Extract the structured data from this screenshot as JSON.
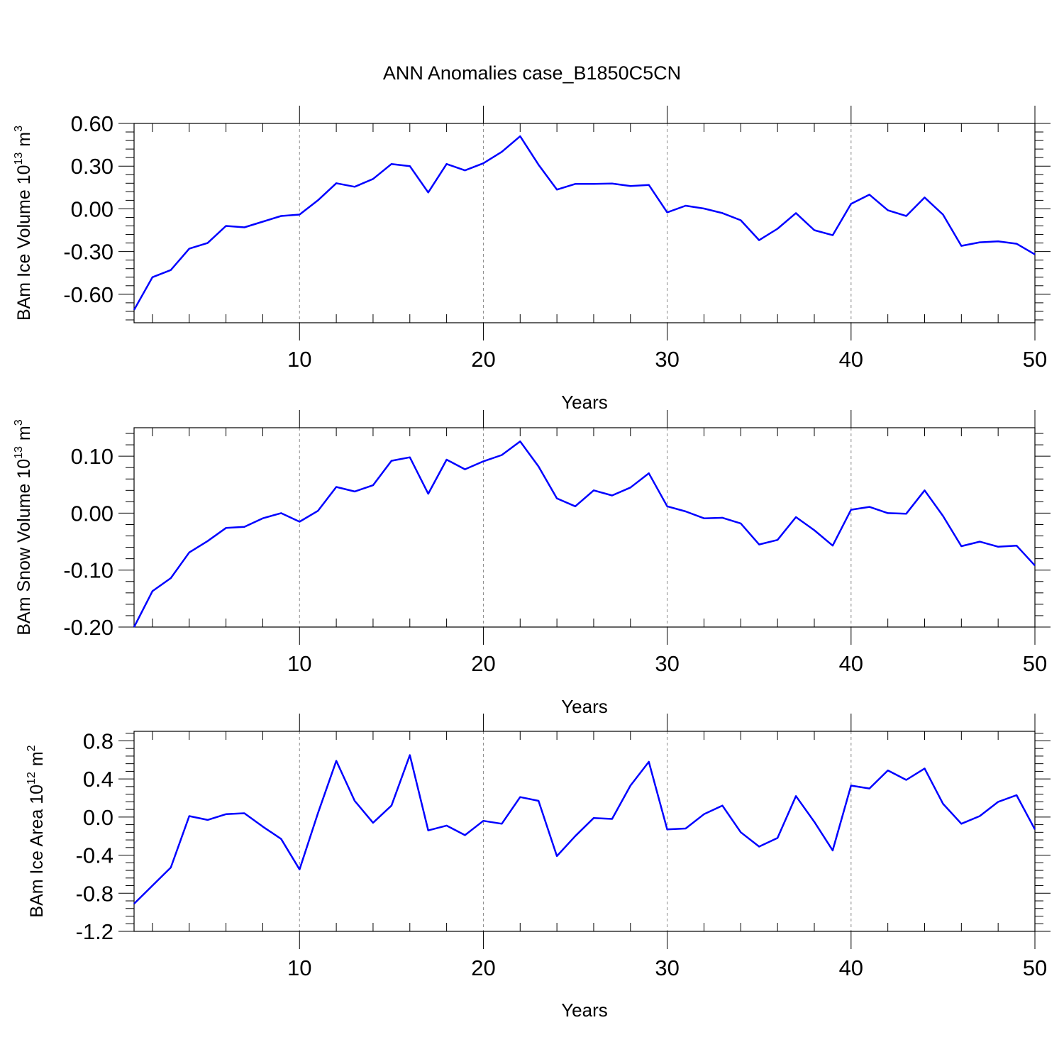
{
  "figure": {
    "title": "ANN Anomalies case_B1850C5CN",
    "line_color": "#0000FF"
  },
  "chart_data": [
    {
      "type": "line",
      "title": "ANN Anomalies case_B1850C5CN",
      "xlabel": "Years",
      "ylabel": "BAm Ice Volume",
      "ylabel_unit_base": "10",
      "ylabel_unit_exp": "13",
      "ylabel_unit_m": "m",
      "ylabel_unit_pow": "3",
      "xlim": [
        1,
        50
      ],
      "ylim": [
        -0.8,
        0.6
      ],
      "xticks": [
        10,
        20,
        30,
        40,
        50
      ],
      "xtick_labels": [
        "10",
        "20",
        "30",
        "40",
        "50"
      ],
      "yticks": [
        0.6,
        0.3,
        0.0,
        -0.3,
        -0.6
      ],
      "ytick_labels": [
        "0.60",
        "0.30",
        "0.00",
        "-0.30",
        "-0.60"
      ],
      "grid": "x-dashed",
      "series": [
        {
          "x": [
            1,
            2,
            3,
            4,
            5,
            6,
            7,
            8,
            9,
            10,
            11,
            12,
            13,
            14,
            15,
            16,
            17,
            18,
            19,
            20,
            21,
            22,
            23,
            24,
            25,
            26,
            27,
            28,
            29,
            30,
            31,
            32,
            33,
            34,
            35,
            36,
            37,
            38,
            39,
            40,
            41,
            42,
            43,
            44,
            45,
            46,
            47,
            48,
            49,
            50
          ],
          "values": [
            -0.71,
            -0.48,
            -0.43,
            -0.28,
            -0.24,
            -0.12,
            -0.13,
            -0.09,
            -0.05,
            -0.04,
            0.06,
            0.18,
            0.155,
            0.21,
            0.315,
            0.3,
            0.115,
            0.315,
            0.27,
            0.32,
            0.4,
            0.51,
            0.31,
            0.135,
            0.175,
            0.175,
            0.178,
            0.16,
            0.168,
            -0.025,
            0.022,
            0.002,
            -0.03,
            -0.08,
            -0.22,
            -0.14,
            -0.03,
            -0.15,
            -0.185,
            0.035,
            0.1,
            -0.01,
            -0.05,
            0.08,
            -0.04,
            -0.26,
            -0.235,
            -0.228,
            -0.245,
            -0.32
          ]
        }
      ]
    },
    {
      "type": "line",
      "xlabel": "Years",
      "ylabel": "BAm Snow Volume",
      "ylabel_unit_base": "10",
      "ylabel_unit_exp": "13",
      "ylabel_unit_m": "m",
      "ylabel_unit_pow": "3",
      "xlim": [
        1,
        50
      ],
      "ylim": [
        -0.2,
        0.15
      ],
      "xticks": [
        10,
        20,
        30,
        40,
        50
      ],
      "xtick_labels": [
        "10",
        "20",
        "30",
        "40",
        "50"
      ],
      "yticks": [
        0.1,
        0.0,
        -0.1,
        -0.2
      ],
      "ytick_labels": [
        "0.10",
        "0.00",
        "-0.10",
        "-0.20"
      ],
      "grid": "x-dashed",
      "series": [
        {
          "x": [
            1,
            2,
            3,
            4,
            5,
            6,
            7,
            8,
            9,
            10,
            11,
            12,
            13,
            14,
            15,
            16,
            17,
            18,
            19,
            20,
            21,
            22,
            23,
            24,
            25,
            26,
            27,
            28,
            29,
            30,
            31,
            32,
            33,
            34,
            35,
            36,
            37,
            38,
            39,
            40,
            41,
            42,
            43,
            44,
            45,
            46,
            47,
            48,
            49,
            50
          ],
          "values": [
            -0.2,
            -0.137,
            -0.114,
            -0.069,
            -0.049,
            -0.026,
            -0.024,
            -0.009,
            0.0,
            -0.015,
            0.004,
            0.046,
            0.038,
            0.049,
            0.092,
            0.098,
            0.034,
            0.094,
            0.077,
            0.091,
            0.102,
            0.126,
            0.082,
            0.026,
            0.012,
            0.04,
            0.031,
            0.045,
            0.07,
            0.012,
            0.003,
            -0.009,
            -0.008,
            -0.018,
            -0.055,
            -0.047,
            -0.007,
            -0.03,
            -0.057,
            0.006,
            0.011,
            0.0,
            -0.001,
            0.04,
            -0.005,
            -0.058,
            -0.05,
            -0.059,
            -0.057,
            -0.092
          ]
        }
      ]
    },
    {
      "type": "line",
      "xlabel": "Years",
      "ylabel": "BAm Ice Area",
      "ylabel_unit_base": "10",
      "ylabel_unit_exp": "12",
      "ylabel_unit_m": "m",
      "ylabel_unit_pow": "2",
      "xlim": [
        1,
        50
      ],
      "ylim": [
        -1.2,
        0.9
      ],
      "xticks": [
        10,
        20,
        30,
        40,
        50
      ],
      "xtick_labels": [
        "10",
        "20",
        "30",
        "40",
        "50"
      ],
      "yticks": [
        0.8,
        0.4,
        0.0,
        -0.4,
        -0.8,
        -1.2
      ],
      "ytick_labels": [
        "0.8",
        "0.4",
        "0.0",
        "-0.4",
        "-0.8",
        "-1.2"
      ],
      "grid": "x-dashed",
      "series": [
        {
          "x": [
            1,
            2,
            3,
            4,
            5,
            6,
            7,
            8,
            9,
            10,
            11,
            12,
            13,
            14,
            15,
            16,
            17,
            18,
            19,
            20,
            21,
            22,
            23,
            24,
            25,
            26,
            27,
            28,
            29,
            30,
            31,
            32,
            33,
            34,
            35,
            36,
            37,
            38,
            39,
            40,
            41,
            42,
            43,
            44,
            45,
            46,
            47,
            48,
            49,
            50
          ],
          "values": [
            -0.91,
            -0.72,
            -0.53,
            0.01,
            -0.03,
            0.03,
            0.04,
            -0.1,
            -0.23,
            -0.55,
            0.04,
            0.59,
            0.17,
            -0.06,
            0.12,
            0.65,
            -0.14,
            -0.09,
            -0.19,
            -0.04,
            -0.07,
            0.21,
            0.17,
            -0.41,
            -0.2,
            -0.01,
            -0.02,
            0.33,
            0.58,
            -0.13,
            -0.12,
            0.03,
            0.12,
            -0.16,
            -0.31,
            -0.22,
            0.22,
            -0.05,
            -0.35,
            0.33,
            0.3,
            0.49,
            0.39,
            0.51,
            0.14,
            -0.07,
            0.01,
            0.16,
            0.23,
            -0.13
          ]
        }
      ]
    }
  ]
}
